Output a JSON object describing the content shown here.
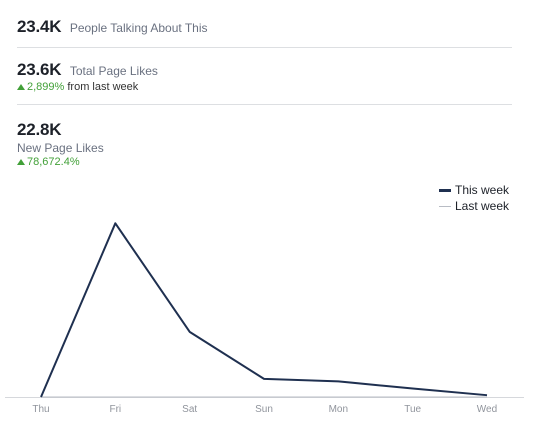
{
  "metrics": {
    "people_talking": {
      "value": "23.4K",
      "label": "People Talking About This"
    },
    "total_page_likes": {
      "value": "23.6K",
      "label": "Total Page Likes",
      "change_pct": "2,899%",
      "change_suffix": " from last week"
    },
    "new_page_likes": {
      "value": "22.8K",
      "label": "New Page Likes",
      "change_pct": "78,672.4%"
    }
  },
  "colors": {
    "this_week": "#1f3050",
    "last_week": "#b8bcc4",
    "positive": "#42a038"
  },
  "chart_data": {
    "type": "line",
    "categories": [
      "Thu",
      "Fri",
      "Sat",
      "Sun",
      "Mon",
      "Tue",
      "Wed"
    ],
    "series": [
      {
        "name": "This week",
        "values": [
          0,
          14400,
          5400,
          1500,
          1300,
          700,
          150
        ]
      },
      {
        "name": "Last week",
        "values": [
          0,
          0,
          0,
          0,
          0,
          0,
          0
        ]
      }
    ],
    "ylim": [
      0,
      16000
    ],
    "legend": "top-right",
    "grid": false
  }
}
